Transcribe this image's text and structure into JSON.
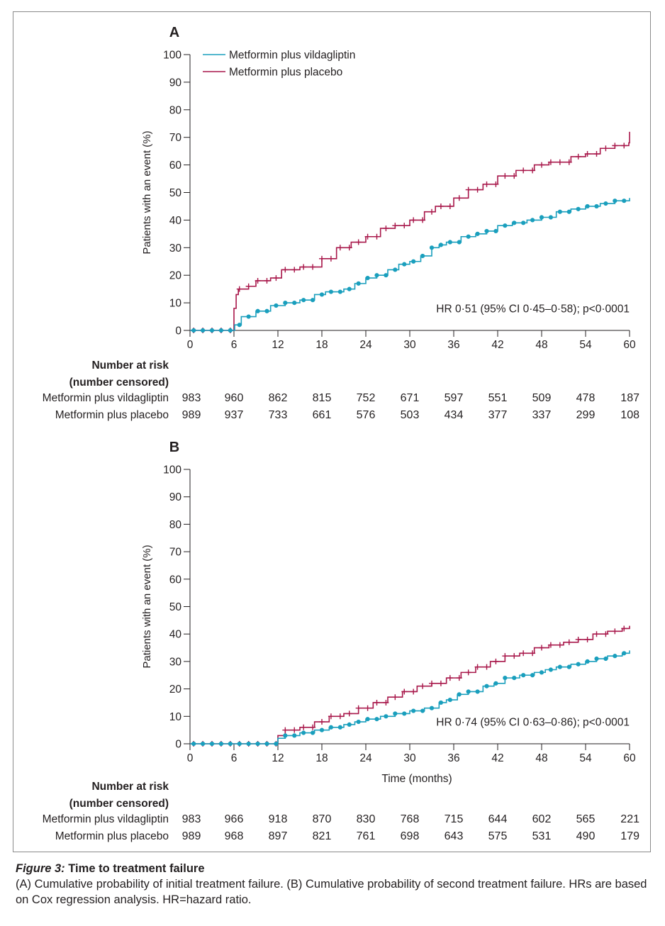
{
  "colors": {
    "vildagliptin": "#1a9fbd",
    "placebo": "#a8174a",
    "axis": "#231f20"
  },
  "chart_data": [
    {
      "type": "line",
      "panel_label": "A",
      "ylabel": "Patients with an event (%)",
      "xlabel": "",
      "ylim": [
        0,
        100
      ],
      "xlim": [
        0,
        60
      ],
      "yticks": [
        0,
        10,
        20,
        30,
        40,
        50,
        60,
        70,
        80,
        90,
        100
      ],
      "xticks": [
        0,
        6,
        12,
        18,
        24,
        30,
        36,
        42,
        48,
        54,
        60
      ],
      "legend": "top-left",
      "annotation": "HR 0·51 (95% CI 0·45–0·58); p<0·0001",
      "series": [
        {
          "name": "Metformin plus vildagliptin",
          "color": "#1a9fbd",
          "marker": "dot",
          "x": [
            0,
            5.8,
            6.1,
            7,
            9,
            11,
            13,
            15,
            17,
            18.5,
            21,
            22.5,
            24,
            25.5,
            27,
            28.5,
            30,
            31.5,
            33,
            34,
            35,
            37,
            39,
            40.5,
            42,
            44,
            46,
            48,
            50,
            52,
            54,
            56,
            58,
            60
          ],
          "y": [
            0,
            0,
            2,
            5,
            7,
            9,
            10,
            11,
            13,
            14,
            15,
            17,
            19,
            20,
            22,
            24,
            25,
            27,
            30,
            31,
            32,
            34,
            35,
            36,
            38,
            39,
            40,
            41,
            43,
            44,
            45,
            46,
            47,
            48
          ]
        },
        {
          "name": "Metformin plus placebo",
          "color": "#a8174a",
          "marker": "plus",
          "x": [
            0,
            5.8,
            6,
            6.3,
            6.6,
            8,
            9,
            11,
            12.5,
            15,
            18,
            20,
            22,
            24,
            26,
            28,
            30,
            32,
            33.5,
            36,
            38,
            40,
            42,
            44.5,
            47,
            49,
            52,
            54,
            56,
            58,
            59.9,
            60
          ],
          "y": [
            0,
            0,
            8,
            13,
            15,
            16,
            18,
            19,
            22,
            23,
            26,
            30,
            32,
            34,
            37,
            38,
            40,
            43,
            45,
            48,
            51,
            53,
            56,
            58,
            60,
            61,
            63,
            64,
            66,
            67,
            68,
            72
          ]
        }
      ],
      "risk_table": {
        "header": "Number at risk",
        "subheader": "(number censored)",
        "rows": [
          {
            "label": "Metformin plus vildagliptin",
            "values": [
              "983",
              "960",
              "862",
              "815",
              "752",
              "671",
              "597",
              "551",
              "509",
              "478",
              "187"
            ]
          },
          {
            "label": "Metformin plus placebo",
            "values": [
              "989",
              "937",
              "733",
              "661",
              "576",
              "503",
              "434",
              "377",
              "337",
              "299",
              "108"
            ]
          }
        ]
      }
    },
    {
      "type": "line",
      "panel_label": "B",
      "ylabel": "Patients with an event (%)",
      "xlabel": "Time (months)",
      "ylim": [
        0,
        100
      ],
      "xlim": [
        0,
        60
      ],
      "yticks": [
        0,
        10,
        20,
        30,
        40,
        50,
        60,
        70,
        80,
        90,
        100
      ],
      "xticks": [
        0,
        6,
        12,
        18,
        24,
        30,
        36,
        42,
        48,
        54,
        60
      ],
      "legend": "none",
      "annotation": "HR 0·74 (95% CI 0·63–0·86); p<0·0001",
      "series": [
        {
          "name": "Metformin plus vildagliptin",
          "color": "#1a9fbd",
          "marker": "dot",
          "x": [
            0,
            11.5,
            12,
            13,
            15,
            17,
            19,
            21,
            22.5,
            24,
            26,
            28,
            30,
            32,
            34,
            35,
            36.5,
            38,
            40,
            41.5,
            43,
            45,
            47,
            48.5,
            50,
            52,
            54,
            55.5,
            57,
            59,
            60
          ],
          "y": [
            0,
            0,
            2,
            3,
            4,
            5,
            6,
            7,
            8,
            9,
            10,
            11,
            12,
            13,
            15,
            16,
            18,
            19,
            21,
            22,
            24,
            25,
            26,
            27,
            28,
            29,
            30,
            31,
            32,
            33,
            34
          ]
        },
        {
          "name": "Metformin plus placebo",
          "color": "#a8174a",
          "marker": "plus",
          "x": [
            0,
            11.5,
            12,
            13,
            15,
            17,
            19,
            21,
            23,
            25,
            27,
            29,
            31,
            33,
            35,
            37,
            39,
            41,
            43,
            45,
            47,
            49,
            51,
            53,
            55,
            57,
            59,
            60
          ],
          "y": [
            0,
            0,
            3,
            5,
            6,
            8,
            10,
            11,
            13,
            15,
            17,
            19,
            21,
            22,
            24,
            26,
            28,
            30,
            32,
            33,
            35,
            36,
            37,
            38,
            40,
            41,
            42,
            43
          ]
        }
      ],
      "risk_table": {
        "header": "Number at risk",
        "subheader": "(number censored)",
        "rows": [
          {
            "label": "Metformin plus vildagliptin",
            "values": [
              "983",
              "966",
              "918",
              "870",
              "830",
              "768",
              "715",
              "644",
              "602",
              "565",
              "221"
            ]
          },
          {
            "label": "Metformin plus placebo",
            "values": [
              "989",
              "968",
              "897",
              "821",
              "761",
              "698",
              "643",
              "575",
              "531",
              "490",
              "179"
            ]
          }
        ]
      }
    }
  ],
  "caption": {
    "figure_label": "Figure 3:",
    "title": "Time to treatment failure",
    "text": "(A) Cumulative probability of initial treatment failure. (B) Cumulative probability of second treatment failure. HRs are based on Cox regression analysis. HR=hazard ratio."
  }
}
